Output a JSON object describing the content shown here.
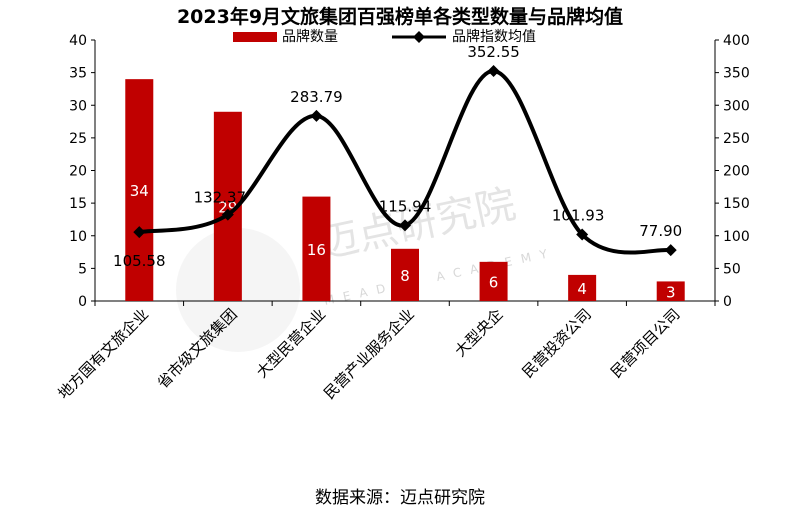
{
  "chart_data": {
    "type": "bar",
    "title": "2023年9月文旅集团百强榜单各类型数量与品牌均值",
    "categories": [
      "地方国有文旅企业",
      "省市级文旅集团",
      "大型民营企业",
      "民营产业服务企业",
      "大型央企",
      "民营投资公司",
      "民营项目公司"
    ],
    "series": [
      {
        "name": "品牌数量",
        "type": "bar",
        "axis": "left",
        "color": "#c00000",
        "values": [
          34,
          29,
          16,
          8,
          6,
          4,
          3
        ],
        "labels": [
          "34",
          "29",
          "16",
          "8",
          "6",
          "4",
          "3"
        ]
      },
      {
        "name": "品牌指数均值",
        "type": "line",
        "axis": "right",
        "color": "#000000",
        "values": [
          105.58,
          132.37,
          283.79,
          115.94,
          352.55,
          101.93,
          77.9
        ],
        "labels": [
          "105.58",
          "132.37",
          "283.79",
          "115.94",
          "352.55",
          "101.93",
          "77.90"
        ]
      }
    ],
    "y_left": {
      "min": 0,
      "max": 40,
      "ticks": [
        "0",
        "5",
        "10",
        "15",
        "20",
        "25",
        "30",
        "35",
        "40"
      ]
    },
    "y_right": {
      "min": 0,
      "max": 400,
      "ticks": [
        "0",
        "50",
        "100",
        "150",
        "200",
        "250",
        "300",
        "350",
        "400"
      ]
    },
    "legend_position": "top"
  },
  "source": "数据来源：迈点研究院",
  "watermark": {
    "cn": "迈点研究院",
    "en": "MEADIN ACADEMY"
  }
}
